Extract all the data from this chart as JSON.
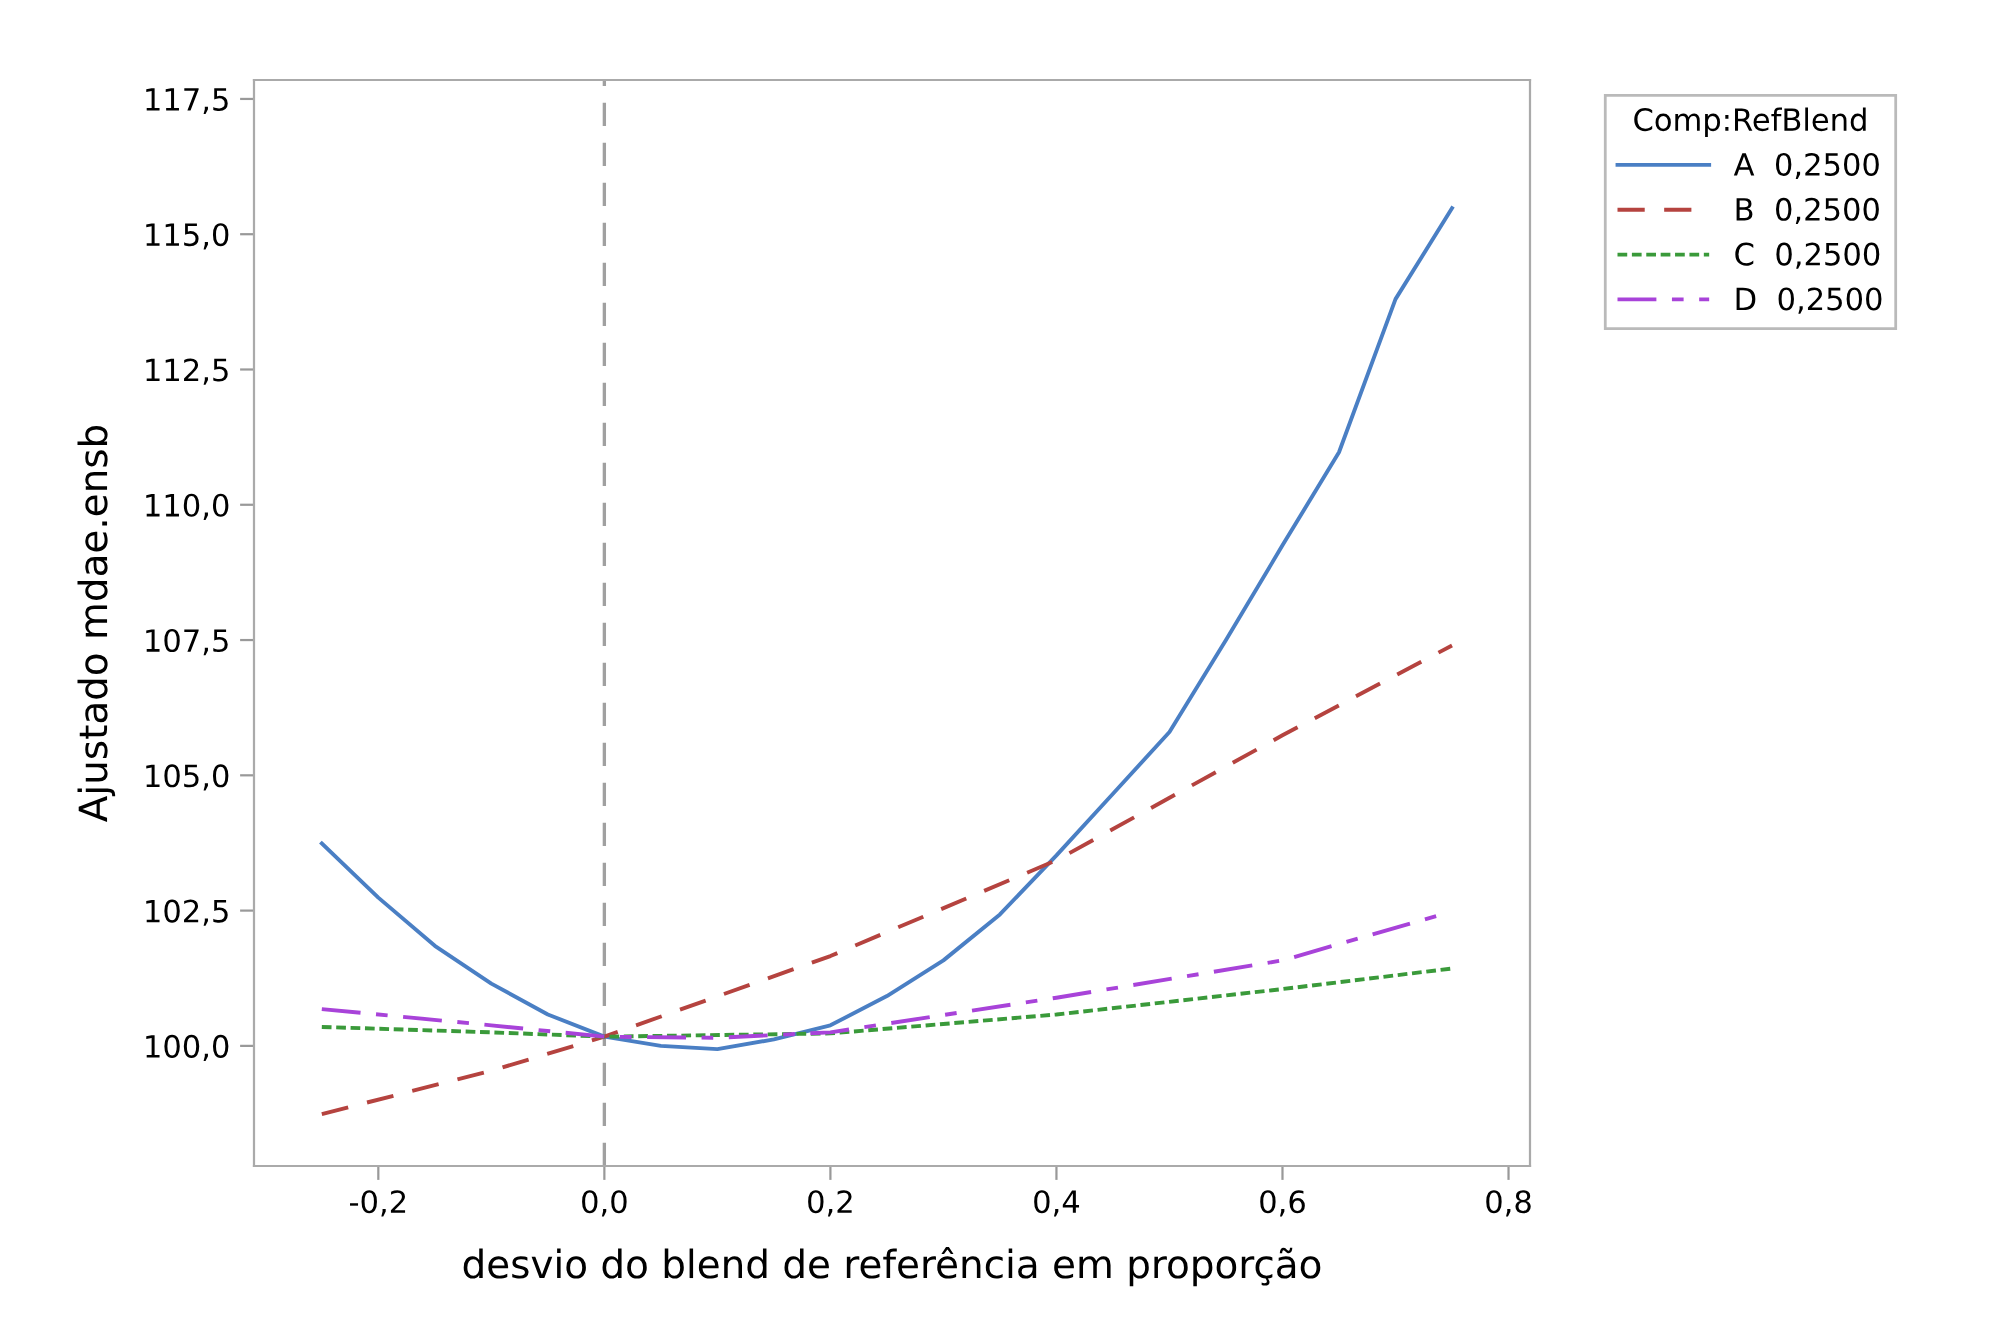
{
  "chart_data": {
    "type": "line",
    "xlabel": "desvio do blend de referência em proporção",
    "ylabel": "Ajustado mdae.ensb",
    "legend_title": "Comp:RefBlend",
    "legend": "top right",
    "grid": false,
    "marker": "none",
    "xlim": [
      -0.31,
      0.819
    ],
    "ylim": [
      97.78,
      117.85
    ],
    "xticks": [
      {
        "value": -0.2,
        "label": "-0,2"
      },
      {
        "value": 0.0,
        "label": "0,0"
      },
      {
        "value": 0.2,
        "label": "0,2"
      },
      {
        "value": 0.4,
        "label": "0,4"
      },
      {
        "value": 0.6,
        "label": "0,6"
      },
      {
        "value": 0.8,
        "label": "0,8"
      }
    ],
    "yticks": [
      {
        "value": 100.0,
        "label": "100,0"
      },
      {
        "value": 102.5,
        "label": "102,5"
      },
      {
        "value": 105.0,
        "label": "105,0"
      },
      {
        "value": 107.5,
        "label": "107,5"
      },
      {
        "value": 110.0,
        "label": "110,0"
      },
      {
        "value": 112.5,
        "label": "112,5"
      },
      {
        "value": 115.0,
        "label": "115,0"
      },
      {
        "value": 117.5,
        "label": "117,5"
      }
    ],
    "ref_lines": [
      {
        "axis": "x",
        "value": 0.0,
        "color": "#a0a0a0",
        "line_style": "dashed"
      }
    ],
    "series": [
      {
        "name": "A  0,2500",
        "color": "#4a7fc4",
        "line_style": "solid",
        "x": [
          -0.25,
          -0.2,
          -0.15,
          -0.1,
          -0.05,
          0.0,
          0.05,
          0.1,
          0.15,
          0.2,
          0.25,
          0.3,
          0.35,
          0.4,
          0.45,
          0.5,
          0.55,
          0.6,
          0.65,
          0.7,
          0.75
        ],
        "values": [
          103.74,
          102.74,
          101.85,
          101.15,
          100.58,
          100.17,
          100.0,
          99.94,
          100.12,
          100.38,
          100.92,
          101.58,
          102.43,
          103.52,
          104.66,
          105.8,
          107.5,
          109.25,
          110.97,
          113.8,
          115.48
        ]
      },
      {
        "name": "B  0,2500",
        "color": "#b5433f",
        "line_style": "dashed",
        "x": [
          -0.25,
          -0.1,
          0.0,
          0.2,
          0.4,
          0.6,
          0.75
        ],
        "values": [
          98.74,
          99.54,
          100.17,
          101.66,
          103.43,
          105.74,
          107.4
        ]
      },
      {
        "name": "C  0,2500",
        "color": "#3a9a3a",
        "line_style": "dotted",
        "x": [
          -0.25,
          -0.1,
          0.0,
          0.2,
          0.4,
          0.6,
          0.75
        ],
        "values": [
          100.35,
          100.25,
          100.17,
          100.23,
          100.58,
          101.05,
          101.43
        ]
      },
      {
        "name": "D  0,2500",
        "color": "#a843d9",
        "line_style": "dashdot",
        "x": [
          -0.25,
          -0.1,
          0.0,
          0.1,
          0.2,
          0.4,
          0.6,
          0.741
        ],
        "values": [
          100.68,
          100.38,
          100.17,
          100.15,
          100.25,
          100.89,
          101.58,
          102.43
        ]
      }
    ]
  }
}
